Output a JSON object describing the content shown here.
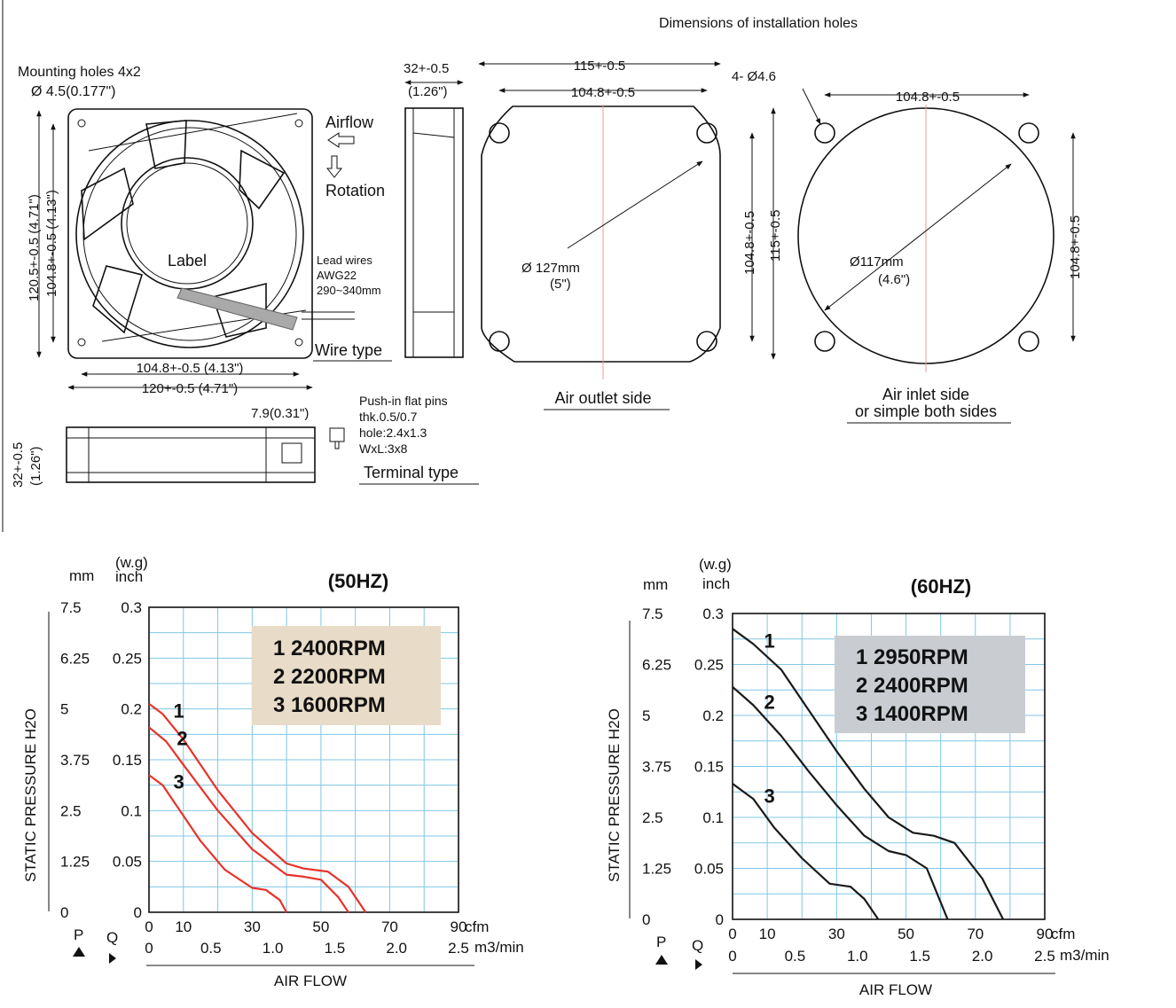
{
  "drawing": {
    "top_title": "Dimensions of installation holes",
    "mounting_holes": "Mounting holes 4x2",
    "mounting_diameter": "Ø 4.5(0.177\")",
    "airflow": "Airflow",
    "rotation": "Rotation",
    "label": "Label",
    "lead_wires": [
      "Lead wires",
      "AWG22",
      "290~340mm"
    ],
    "wire_type": "Wire type",
    "dim_120_5": "120.5+-0.5 (4.71\")",
    "dim_104_8_v": "104.8+-0.5 (4.13\")",
    "dim_104_8_h": "104.8+-0.5 (4.13\")",
    "dim_120_h": "120+-0.5 (4.71\")",
    "depth_top": "32+-0.5",
    "depth_top_in": "(1.26\")",
    "depth_side": "32+-0.5",
    "depth_side_in": "(1.26\")",
    "pin_offset": "7.9(0.31\")",
    "terminal_notes": [
      "Push-in flat pins",
      "thk.0.5/0.7",
      "hole:2.4x1.3",
      "WxL:3x8"
    ],
    "terminal_type": "Terminal type",
    "outlet_115": "115+-0.5",
    "outlet_104_8": "104.8+-0.5",
    "outlet_v_104_8": "104.8+-0.5",
    "outlet_v_115": "115+-0.5",
    "outlet_dia": "Ø 127mm",
    "outlet_dia_in": "(5\")",
    "outlet_side": "Air outlet side",
    "hole_spec": "4- Ø4.6",
    "inlet_104_8": "104.8+-0.5",
    "inlet_v_104_8": "104.8+-0.5",
    "inlet_dia": "Ø117mm",
    "inlet_dia_in": "(4.6\")",
    "inlet_side_1": "Air inlet side",
    "inlet_side_2": "or simple both sides"
  },
  "charts": {
    "mm_label": "mm",
    "wg_label": "(w.g)",
    "inch_label": "inch",
    "y_title": "STATIC PRESSURE H2O",
    "x_title": "AIR FLOW",
    "cfm_unit": "cfm",
    "m3_unit": "m3/min",
    "p_label": "P",
    "q_label": "Q",
    "mm_ticks": [
      "7.5",
      "6.25",
      "5",
      "3.75",
      "2.5",
      "1.25",
      "0"
    ],
    "inch_ticks": [
      "0.3",
      "0.25",
      "0.2",
      "0.15",
      "0.1",
      "0.05",
      "0"
    ],
    "cfm_ticks": [
      "0",
      "10",
      "30",
      "50",
      "70",
      "90"
    ],
    "m3_ticks": [
      "0",
      "0.5",
      "1.0",
      "1.5",
      "2.0",
      "2.5"
    ],
    "curve_color_50": "#e8322a",
    "curve_color_60": "#1a1a1a",
    "legend_bg_50": "#e8dcc8",
    "legend_bg_60": "#c9cdd2",
    "grid_color": "#7fc7e6"
  },
  "chart_data": [
    {
      "type": "line",
      "title": "(50HZ)",
      "xlabel": "AIR FLOW",
      "ylabel": "STATIC PRESSURE H2O",
      "x_unit": "cfm",
      "y_unit": "inch",
      "xlim": [
        0,
        90
      ],
      "ylim": [
        0,
        0.3
      ],
      "grid": true,
      "legend": [
        "1  2400RPM",
        "2  2200RPM",
        "3  1600RPM"
      ],
      "series": [
        {
          "name": "1",
          "x": [
            0,
            4,
            10,
            20,
            30,
            40,
            45,
            52,
            58,
            63
          ],
          "y": [
            0.205,
            0.195,
            0.17,
            0.12,
            0.078,
            0.048,
            0.043,
            0.04,
            0.025,
            0
          ]
        },
        {
          "name": "2",
          "x": [
            0,
            5,
            10,
            20,
            30,
            40,
            45,
            50,
            55,
            58
          ],
          "y": [
            0.182,
            0.168,
            0.145,
            0.1,
            0.062,
            0.037,
            0.035,
            0.032,
            0.015,
            0
          ]
        },
        {
          "name": "3",
          "x": [
            0,
            4,
            8,
            15,
            22,
            30,
            34,
            38,
            40
          ],
          "y": [
            0.135,
            0.125,
            0.105,
            0.07,
            0.042,
            0.024,
            0.022,
            0.012,
            0
          ]
        }
      ]
    },
    {
      "type": "line",
      "title": "(60HZ)",
      "xlabel": "AIR FLOW",
      "ylabel": "STATIC PRESSURE H2O",
      "x_unit": "cfm",
      "y_unit": "inch",
      "xlim": [
        0,
        90
      ],
      "ylim": [
        0,
        0.3
      ],
      "grid": true,
      "legend": [
        "1  2950RPM",
        "2  2400RPM",
        "3  1400RPM"
      ],
      "series": [
        {
          "name": "1",
          "x": [
            0,
            6,
            14,
            22,
            30,
            38,
            45,
            52,
            58,
            64,
            72,
            78
          ],
          "y": [
            0.285,
            0.27,
            0.245,
            0.205,
            0.165,
            0.128,
            0.1,
            0.085,
            0.082,
            0.075,
            0.04,
            0
          ]
        },
        {
          "name": "2",
          "x": [
            0,
            6,
            14,
            22,
            30,
            38,
            45,
            50,
            56,
            62
          ],
          "y": [
            0.228,
            0.21,
            0.18,
            0.145,
            0.112,
            0.082,
            0.067,
            0.063,
            0.05,
            0
          ]
        },
        {
          "name": "3",
          "x": [
            0,
            6,
            12,
            20,
            28,
            34,
            38,
            42
          ],
          "y": [
            0.133,
            0.118,
            0.09,
            0.06,
            0.035,
            0.032,
            0.02,
            0
          ]
        }
      ]
    }
  ]
}
